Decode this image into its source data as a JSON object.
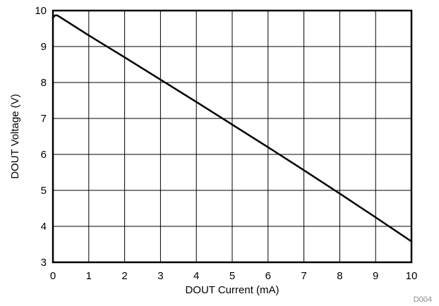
{
  "chart_data": {
    "type": "line",
    "title": "",
    "xlabel": "DOUT Current (mA)",
    "ylabel": "DOUT Voltage (V)",
    "xlim": [
      0,
      10
    ],
    "ylim": [
      3,
      10
    ],
    "x_ticks": [
      0,
      1,
      2,
      3,
      4,
      5,
      6,
      7,
      8,
      9,
      10
    ],
    "y_ticks": [
      3,
      4,
      5,
      6,
      7,
      8,
      9,
      10
    ],
    "grid": true,
    "legend": "none",
    "figure_id": "D004",
    "series": [
      {
        "color": "#000000",
        "x": [
          0,
          0.05,
          0.1,
          0.15,
          1,
          2,
          3,
          4,
          5,
          6,
          7,
          8,
          9,
          10
        ],
        "y": [
          9.8,
          9.86,
          9.87,
          9.85,
          9.31,
          8.7,
          8.08,
          7.46,
          6.83,
          6.2,
          5.56,
          4.91,
          4.25,
          3.58
        ]
      }
    ]
  }
}
